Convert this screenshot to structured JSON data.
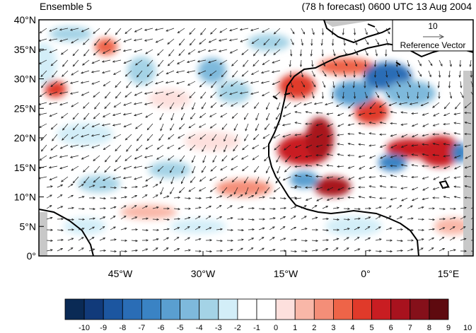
{
  "title_left": "Ensemble 5",
  "title_right": "(78 h forecast) 0600 UTC 13 Aug 2004",
  "lat_labels": [
    "40°N",
    "35°N",
    "30°N",
    "25°N",
    "20°N",
    "15°N",
    "10°N",
    "5°N",
    "0°"
  ],
  "lon_labels": [
    "45°W",
    "30°W",
    "15°W",
    "0°",
    "15°E"
  ],
  "reference_vector": {
    "value": "10",
    "label": "Reference Vector"
  },
  "colorbar": {
    "labels": [
      "-10",
      "-9",
      "-8",
      "-7",
      "-6",
      "-5",
      "-4",
      "-3",
      "-2",
      "-1",
      "0",
      "1",
      "2",
      "3",
      "4",
      "5",
      "6",
      "7",
      "8",
      "9",
      "10"
    ],
    "colors": [
      "#0a2a55",
      "#113a7a",
      "#1c56a0",
      "#2a6db6",
      "#3a83c4",
      "#5a9fd0",
      "#7eb9dc",
      "#a4d3e6",
      "#d3eef8",
      "#ffffff",
      "#ffffff",
      "#fde0dd",
      "#f9b7a8",
      "#f48e78",
      "#ee6448",
      "#e03a2a",
      "#c91d22",
      "#a8121e",
      "#85101a",
      "#5e0a0f"
    ]
  },
  "colors": {
    "land_outline": "#000000",
    "missing": "#c8c8c8",
    "vector": "#000000"
  }
}
